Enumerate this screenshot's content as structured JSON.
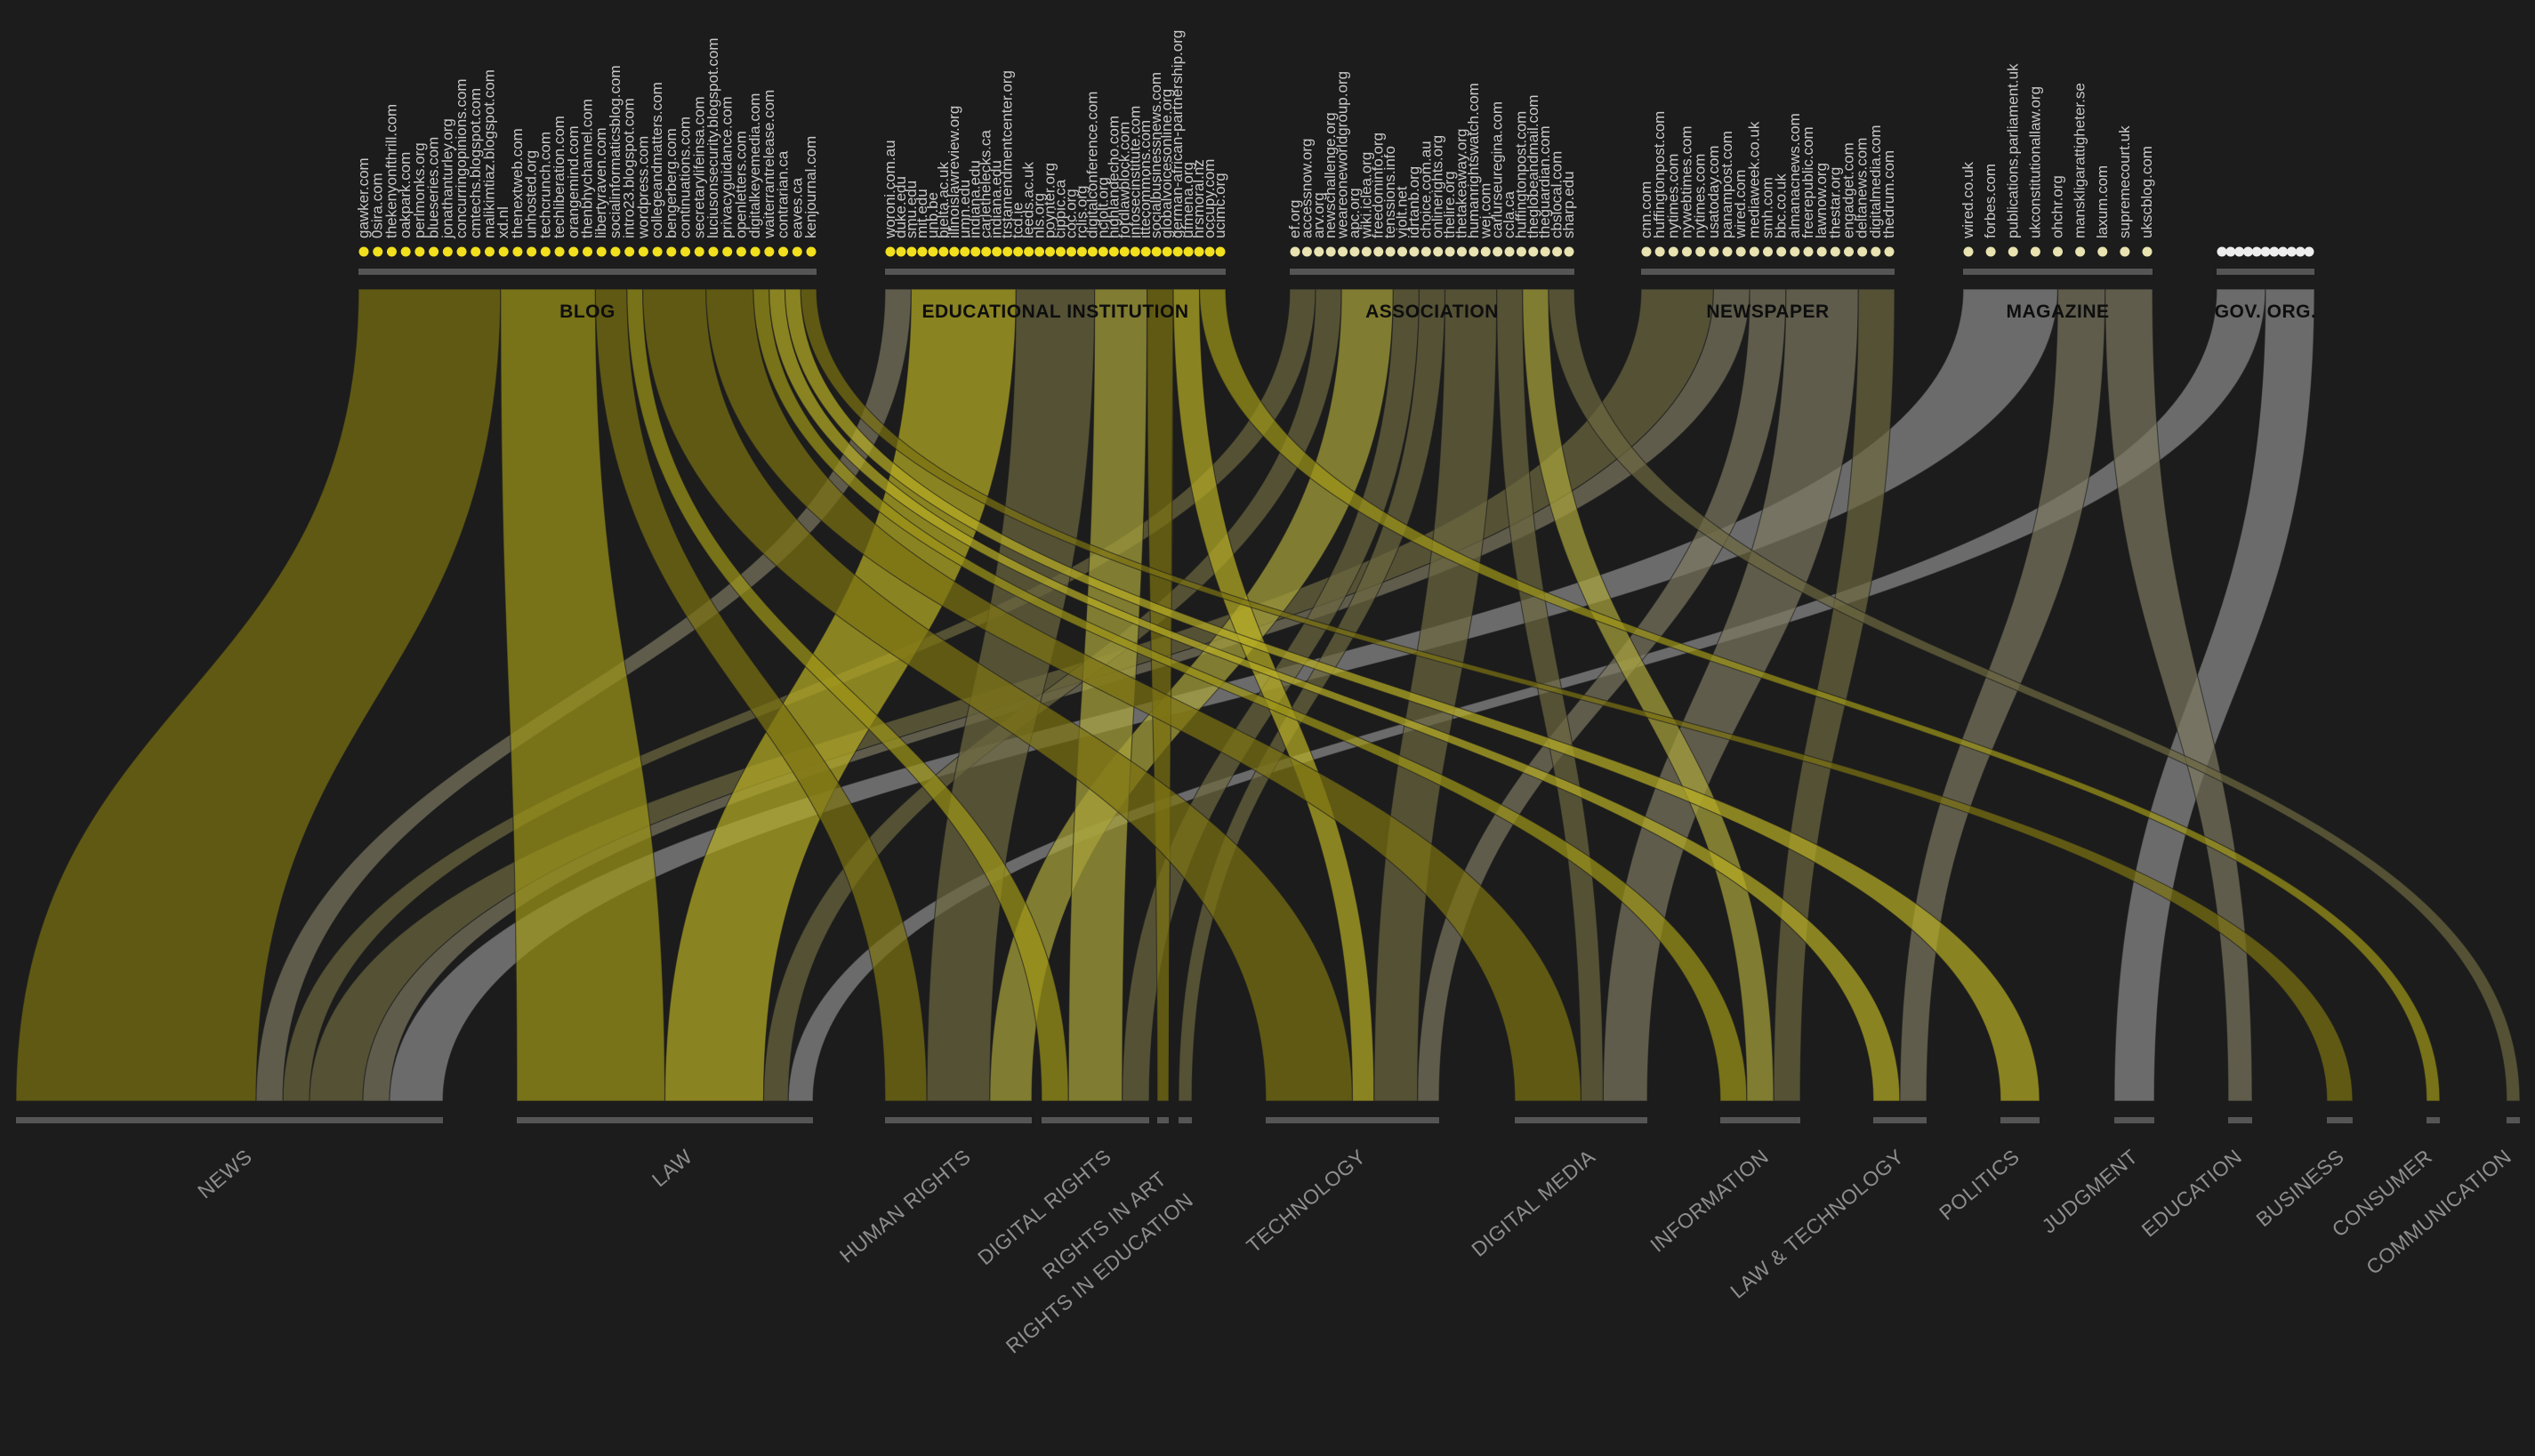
{
  "colors": {
    "background": "#1c1c1c",
    "group_bar": "#555555",
    "ribbon_palette": [
      "#7c7212",
      "#9c9418",
      "#b6ac24",
      "#6b6640",
      "#7a7660",
      "#8a8a8a",
      "#a8a23a"
    ],
    "dot_yellow": "#f2e01e",
    "dot_cream": "#e8e3b0",
    "dot_white": "#ededed"
  },
  "categories": [
    {
      "id": "blog",
      "label": "BLOG",
      "color": "#7c7212",
      "dot": "#f2e01e",
      "sites": [
        "gawker.com",
        "0sira.com",
        "thekenyonfthrill.com",
        "oakpark.com",
        "perlmonks.org",
        "blueseries.com",
        "jonathanturley.org",
        "concurringopinions.com",
        "cmtechs.blogspot.com",
        "malikimtiaz.blogspot.com",
        "xd.nl",
        "thenextweb.com",
        "unhosted.org",
        "techcrunch.com",
        "techliberation.com",
        "orangemind.com",
        "thenbhychannel.com",
        "libertyraven.com",
        "socialinformaticsblog.com",
        "intro23.blogspot.com",
        "wordpress.com",
        "collegeandmatters.com",
        "bengerberg.com",
        "continuations.com",
        "secretarylifeinsa.com",
        "luciusonsecurity.blogspot.com",
        "privacyguidance.com",
        "openletters.com",
        "digitalkeyemedia.com",
        "waiterrantrelease.com",
        "contrarian.ca",
        "eaves.ca",
        "kenjournal.com"
      ]
    },
    {
      "id": "edu",
      "label": "EDUCATIONAL INSTITUTION",
      "color": "#857a12",
      "dot": "#f2e01e",
      "sites": [
        "woroni.com.au",
        "duke.edu",
        "smu.edu",
        "mit.edu",
        "unb.be",
        "bjelta.ac.uk",
        "illinoislawreview.org",
        "umn.edu",
        "indiana.edu",
        "carlethelecks.ca",
        "indiana.edu",
        "trstamendmentcenter.org",
        "tcd.ie",
        "leeds.ac.uk",
        "nls.org",
        "poynter.org",
        "cippic.ca",
        "coc.org",
        "rclis.org",
        "digitalconference.com",
        "ncjolt.org",
        "highlandecho.com",
        "fordlawblock.com",
        "infosecinstitute.com",
        "ittecommons.com",
        "socialbusinessnews.com",
        "globalvoicesonline.org",
        "german-african-partnership.org",
        "ufmena.org",
        "hrsmoral.nz",
        "occupy.com",
        "ucimc.org"
      ]
    },
    {
      "id": "assoc",
      "label": "ASSOCIATION",
      "color": "#6b6640",
      "dot": "#e8e3b0",
      "sites": [
        "ef.org",
        "accessnow.org",
        "arv.org",
        "newschallenge.org",
        "weareoneworldgroup.org",
        "apc.org",
        "wiki.iclea.org",
        "freedominfo.org",
        "tenssions.info",
        "vjolt.net",
        "idrtanb.org",
        "choice.com.au",
        "onlinerights.org",
        "thelire.org",
        "thetakeaway.org",
        "humanrightswatch.com",
        "wej.com",
        "carlurseuregina.com",
        "ccla.ca",
        "huffingtonpost.com",
        "theglobeandmail.com",
        "theguardian.com",
        "cbslocal.com",
        "sharp.edu"
      ]
    },
    {
      "id": "news",
      "label": "NEWSPAPER",
      "color": "#7a7660",
      "dot": "#e8e3b0",
      "sites": [
        "cnn.com",
        "huffingtonpost.com",
        "nytimes.com",
        "nywebtimes.com",
        "nytimes.com",
        "usatoday.com",
        "panampost.com",
        "wired.com",
        "mediaweek.co.uk",
        "smh.com",
        "bbc.co.uk",
        "almanacnews.com",
        "freerepublic.com",
        "lawnow.org",
        "thestar.org",
        "engadget.com",
        "deltanews.com",
        "digitalmedia.com",
        "thedrum.com"
      ]
    },
    {
      "id": "mag",
      "label": "MAGAZINE",
      "color": "#7a7a6a",
      "dot": "#e8e3b0",
      "sites": [
        "wired.co.uk",
        "forbes.com",
        "publications.parliament.uk",
        "ukconstitutionallaw.org",
        "ohchr.org",
        "manskligarattigheter.se",
        "laxum.com",
        "supremecourt.uk",
        "ukscblog.com"
      ]
    },
    {
      "id": "gov",
      "label": "GOV. ORG.",
      "color": "#8a8a8a",
      "dot": "#ededed",
      "sites": []
    }
  ],
  "topics": [
    "NEWS",
    "LAW",
    "HUMAN RIGHTS",
    "DIGITAL RIGHTS",
    "RIGHTS IN ART",
    "RIGHTS IN EDUCATION",
    "TECHNOLOGY",
    "DIGITAL MEDIA",
    "INFORMATION",
    "LAW & TECHNOLOGY",
    "POLITICS",
    "JUDGMENT",
    "EDUCATION",
    "BUSINESS",
    "CONSUMER",
    "COMMUNICATION"
  ],
  "flows": [
    {
      "cat": "blog",
      "topic": "NEWS",
      "value": 9,
      "shade": 0
    },
    {
      "cat": "assoc",
      "topic": "NEWS",
      "value": 1,
      "shade": 3
    },
    {
      "cat": "news",
      "topic": "NEWS",
      "value": 2,
      "shade": 3
    },
    {
      "cat": "news",
      "topic": "NEWS",
      "value": 1,
      "shade": 4
    },
    {
      "cat": "mag",
      "topic": "NEWS",
      "value": 2,
      "shade": 5
    },
    {
      "cat": "edu",
      "topic": "NEWS",
      "value": 1,
      "shade": 4
    },
    {
      "cat": "blog",
      "topic": "LAW",
      "value": 6,
      "shade": 1
    },
    {
      "cat": "edu",
      "topic": "LAW",
      "value": 4,
      "shade": 2
    },
    {
      "cat": "assoc",
      "topic": "LAW",
      "value": 1,
      "shade": 3
    },
    {
      "cat": "gov",
      "topic": "LAW",
      "value": 1,
      "shade": 5
    },
    {
      "cat": "blog",
      "topic": "HUMAN RIGHTS",
      "value": 2,
      "shade": 0
    },
    {
      "cat": "edu",
      "topic": "HUMAN RIGHTS",
      "value": 3,
      "shade": 3
    },
    {
      "cat": "assoc",
      "topic": "HUMAN RIGHTS",
      "value": 2,
      "shade": 6
    },
    {
      "cat": "blog",
      "topic": "DIGITAL RIGHTS",
      "value": 1,
      "shade": 1
    },
    {
      "cat": "edu",
      "topic": "DIGITAL RIGHTS",
      "value": 2,
      "shade": 6
    },
    {
      "cat": "assoc",
      "topic": "DIGITAL RIGHTS",
      "value": 1,
      "shade": 3
    },
    {
      "cat": "edu",
      "topic": "RIGHTS IN ART",
      "value": 1,
      "shade": 0
    },
    {
      "cat": "assoc",
      "topic": "RIGHTS IN EDUCATION",
      "value": 1,
      "shade": 3
    },
    {
      "cat": "blog",
      "topic": "TECHNOLOGY",
      "value": 4,
      "shade": 0
    },
    {
      "cat": "edu",
      "topic": "TECHNOLOGY",
      "value": 1,
      "shade": 2
    },
    {
      "cat": "news",
      "topic": "TECHNOLOGY",
      "value": 1,
      "shade": 4
    },
    {
      "cat": "assoc",
      "topic": "TECHNOLOGY",
      "value": 2,
      "shade": 3
    },
    {
      "cat": "blog",
      "topic": "DIGITAL MEDIA",
      "value": 3,
      "shade": 0
    },
    {
      "cat": "news",
      "topic": "DIGITAL MEDIA",
      "value": 2,
      "shade": 4
    },
    {
      "cat": "assoc",
      "topic": "DIGITAL MEDIA",
      "value": 1,
      "shade": 3
    },
    {
      "cat": "blog",
      "topic": "INFORMATION",
      "value": 1,
      "shade": 1
    },
    {
      "cat": "news",
      "topic": "INFORMATION",
      "value": 1,
      "shade": 3
    },
    {
      "cat": "assoc",
      "topic": "INFORMATION",
      "value": 1,
      "shade": 6
    },
    {
      "cat": "blog",
      "topic": "LAW & TECHNOLOGY",
      "value": 1,
      "shade": 2
    },
    {
      "cat": "mag",
      "topic": "LAW & TECHNOLOGY",
      "value": 1,
      "shade": 4
    },
    {
      "cat": "blog",
      "topic": "POLITICS",
      "value": 1,
      "shade": 2
    },
    {
      "cat": "gov",
      "topic": "JUDGMENT",
      "value": 1,
      "shade": 5
    },
    {
      "cat": "mag",
      "topic": "EDUCATION",
      "value": 1,
      "shade": 4
    },
    {
      "cat": "blog",
      "topic": "BUSINESS",
      "value": 1,
      "shade": 0
    },
    {
      "cat": "edu",
      "topic": "CONSUMER",
      "value": 1,
      "shade": 1
    },
    {
      "cat": "assoc",
      "topic": "COMMUNICATION",
      "value": 1,
      "shade": 3
    }
  ]
}
